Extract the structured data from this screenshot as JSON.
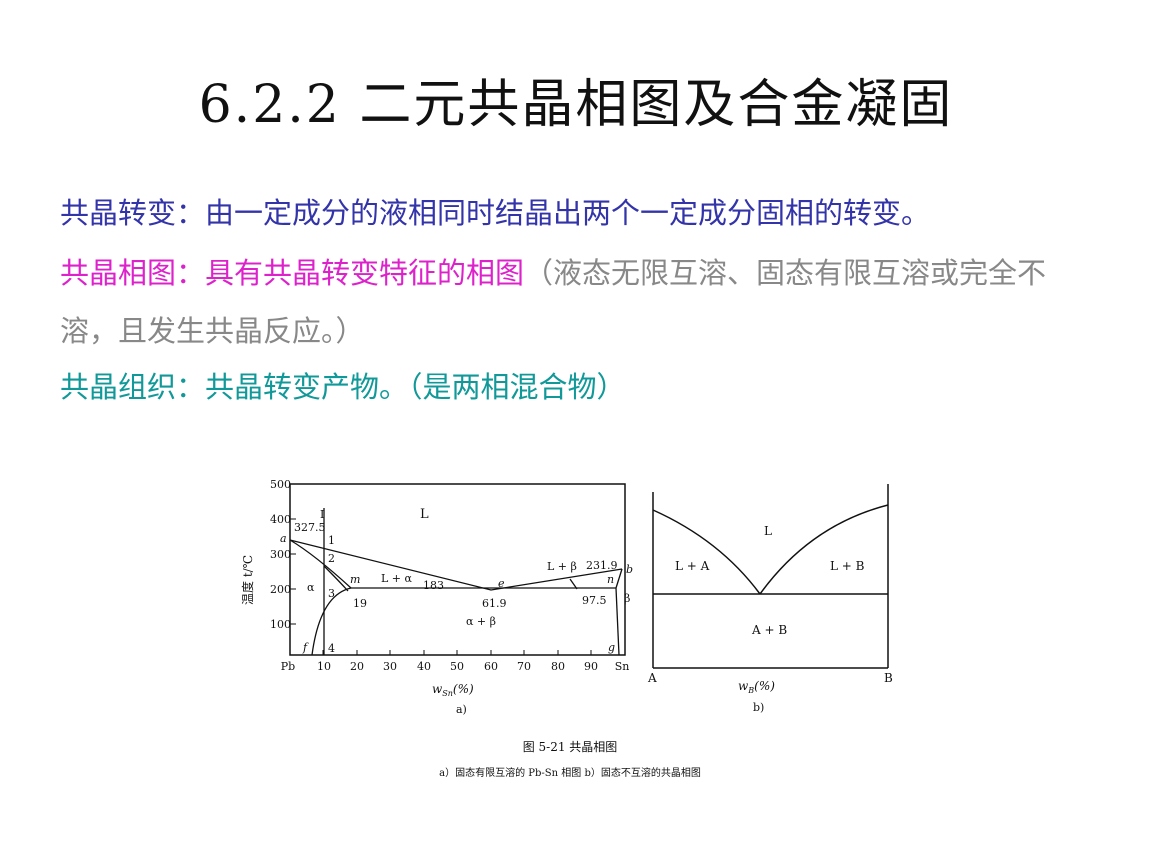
{
  "title": "6.2.2  二元共晶相图及合金凝固",
  "paragraphs": {
    "p1": "共晶转变：由一定成分的液相同时结晶出两个一定成分固相的转变。",
    "p2_main": "共晶相图：具有共晶转变特征的相图",
    "p2_note": "（液态无限互溶、固态有限互溶或完全不溶，且发生共晶反应。）",
    "p3": "共晶组织：共晶转变产物。（是两相混合物）"
  },
  "colors": {
    "title": "#111111",
    "p1": "#3333aa",
    "p2_main": "#dd22cc",
    "p2_note": "#888888",
    "p3": "#119999"
  },
  "figure": {
    "caption": "图 5-21   共晶相图",
    "subcaption": "a）固态有限互溶的 Pb-Sn 相图   b）固态不互溶的共晶相图",
    "diagram_a": {
      "y_label": "温度 t/℃",
      "y_ticks": [
        "500",
        "400",
        "300",
        "200",
        "100"
      ],
      "x_ticks": [
        "Pb",
        "10",
        "20",
        "30",
        "40",
        "50",
        "60",
        "70",
        "80",
        "90",
        "Sn"
      ],
      "x_label": "w",
      "x_label_sub": "Sn",
      "x_label_unit": "(%)",
      "panel": "a)",
      "labels": {
        "L": "L",
        "alpha": "α",
        "beta": "β",
        "L_alpha": "L + α",
        "L_beta": "L + β",
        "alpha_beta": "α + β",
        "t_a": "327.5",
        "t_b": "231.9",
        "t_e": "183",
        "c_m": "19",
        "c_e": "61.9",
        "c_n": "97.5",
        "pt_a": "a",
        "pt_b": "b",
        "pt_e": "e",
        "pt_m": "m",
        "pt_n": "n",
        "pt_f": "f",
        "pt_g": "g",
        "alloy": "I",
        "n1": "1",
        "n2": "2",
        "n3": "3",
        "n4": "4"
      }
    },
    "diagram_b": {
      "labels": {
        "L": "L",
        "L_A": "L + A",
        "L_B": "L + B",
        "A_B": "A + B",
        "A": "A",
        "B": "B"
      },
      "x_label": "w",
      "x_label_sub": "B",
      "x_label_unit": "(%)",
      "panel": "b)"
    }
  }
}
